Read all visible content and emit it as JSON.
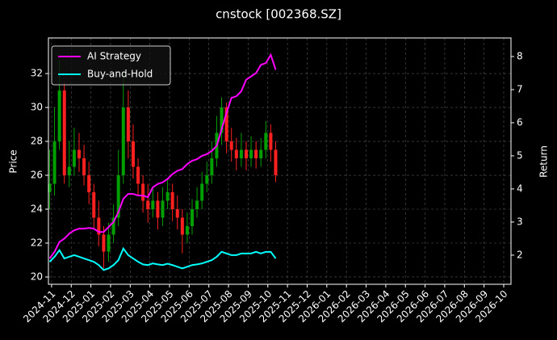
{
  "chart_data": {
    "type": "candlestick",
    "title": "cnstock [002368.SZ]",
    "ylabel": "Price",
    "y2label": "Return",
    "x": [
      -0.1,
      0.15,
      0.4,
      0.65,
      0.9,
      1.15,
      1.4,
      1.65,
      1.9,
      2.15,
      2.4,
      2.65,
      2.9,
      3.15,
      3.4,
      3.65,
      3.9,
      4.15,
      4.4,
      4.65,
      4.9,
      5.15,
      5.4,
      5.65,
      5.9,
      6.15,
      6.4,
      6.65,
      6.9,
      7.15,
      7.4,
      7.65,
      7.9,
      8.15,
      8.4,
      8.65,
      8.9,
      9.15,
      9.4,
      9.65,
      9.9,
      10.15,
      10.4,
      10.65,
      10.9,
      11.15,
      11.4
    ],
    "open": [
      25,
      25.5,
      28,
      31,
      26,
      26.5,
      27.5,
      27,
      26,
      25,
      23.5,
      22.5,
      21.5,
      22.5,
      23.5,
      26,
      30,
      28,
      26.5,
      25.5,
      24.5,
      24,
      24.5,
      23.5,
      24.5,
      25,
      24,
      23.5,
      22.5,
      23,
      24,
      24.5,
      25.5,
      26,
      27,
      28.5,
      30,
      28,
      27.5,
      27,
      27.5,
      27,
      27.5,
      27,
      27.5,
      28.5,
      27.5
    ],
    "high": [
      27.5,
      30,
      32.8,
      31.5,
      28,
      28.8,
      28.5,
      27.8,
      26.8,
      25.5,
      24.5,
      23,
      23.2,
      24.3,
      27.5,
      32,
      31,
      29,
      27,
      26,
      25.5,
      25.3,
      25,
      25.3,
      25.8,
      25.5,
      24.8,
      24,
      23.8,
      24.6,
      25.3,
      26.2,
      26.8,
      28,
      29.5,
      30.6,
      30.3,
      28.8,
      28.2,
      28.5,
      28,
      28.3,
      28,
      28.2,
      29.2,
      29,
      28
    ],
    "low": [
      24,
      24.8,
      27.5,
      25.5,
      25.3,
      26,
      26.2,
      25.4,
      24.3,
      22.8,
      21.8,
      20.5,
      20.9,
      22,
      23,
      25.5,
      27,
      25.8,
      24.8,
      23.8,
      23.2,
      23.5,
      22.8,
      23,
      24,
      23.3,
      22.8,
      21.4,
      22,
      22.5,
      23.5,
      24,
      25,
      25.5,
      26.5,
      27.8,
      27.3,
      26.8,
      26.3,
      26.5,
      26.3,
      26.5,
      26.4,
      26.5,
      27,
      26.8,
      25.6
    ],
    "close": [
      25.5,
      28,
      31,
      26,
      26.5,
      27.5,
      27,
      26,
      25,
      23.5,
      22.5,
      21.5,
      22.5,
      23.5,
      26,
      30,
      28,
      26.5,
      25.5,
      24.5,
      24,
      24.5,
      23.5,
      24.5,
      25,
      24,
      23.5,
      22.5,
      23,
      24,
      24.5,
      25.5,
      26,
      27,
      28.5,
      30,
      28,
      27.5,
      27,
      27.5,
      27,
      27.5,
      27,
      27.5,
      28.5,
      27.5,
      26
    ],
    "up_color": "#00a000",
    "down_color": "#ff2020",
    "series": [
      {
        "name": "AI Strategy",
        "color": "#ff00ff",
        "axis": "y2",
        "values": [
          1.9,
          2.1,
          2.4,
          2.5,
          2.65,
          2.75,
          2.8,
          2.8,
          2.82,
          2.8,
          2.7,
          2.7,
          2.85,
          3.0,
          3.3,
          3.7,
          3.85,
          3.85,
          3.8,
          3.8,
          3.75,
          4.05,
          4.15,
          4.2,
          4.3,
          4.45,
          4.55,
          4.6,
          4.75,
          4.85,
          4.9,
          5.0,
          5.05,
          5.15,
          5.3,
          5.8,
          6.3,
          6.75,
          6.8,
          6.95,
          7.3,
          7.4,
          7.5,
          7.75,
          7.8,
          8.05,
          7.6
        ]
      },
      {
        "name": "Buy-and-Hold",
        "color": "#00ffff",
        "axis": "y2",
        "values": [
          1.8,
          1.95,
          2.15,
          1.9,
          1.95,
          2.0,
          1.95,
          1.9,
          1.85,
          1.8,
          1.7,
          1.55,
          1.6,
          1.7,
          1.85,
          2.2,
          2.0,
          1.9,
          1.8,
          1.72,
          1.7,
          1.75,
          1.72,
          1.7,
          1.74,
          1.7,
          1.65,
          1.6,
          1.65,
          1.7,
          1.72,
          1.75,
          1.8,
          1.85,
          1.95,
          2.1,
          2.05,
          2.0,
          2.0,
          2.05,
          2.05,
          2.05,
          2.1,
          2.05,
          2.1,
          2.1,
          1.9
        ]
      }
    ],
    "xlim": [
      -0.16,
      23.37
    ],
    "ylim": [
      19.57,
      34.1
    ],
    "y2lim": [
      1.12,
      8.56
    ],
    "xticks": [
      {
        "value": 0,
        "label": "2024-11"
      },
      {
        "value": 1,
        "label": "2024-12"
      },
      {
        "value": 2,
        "label": "2025-01"
      },
      {
        "value": 3,
        "label": "2025-02"
      },
      {
        "value": 4,
        "label": "2025-03"
      },
      {
        "value": 5,
        "label": "2025-04"
      },
      {
        "value": 6,
        "label": "2025-05"
      },
      {
        "value": 7,
        "label": "2025-06"
      },
      {
        "value": 8,
        "label": "2025-07"
      },
      {
        "value": 9,
        "label": "2025-08"
      },
      {
        "value": 10,
        "label": "2025-09"
      },
      {
        "value": 11,
        "label": "2025-10"
      },
      {
        "value": 12,
        "label": "2025-11"
      },
      {
        "value": 13,
        "label": "2025-12"
      },
      {
        "value": 14,
        "label": "2026-01"
      },
      {
        "value": 15,
        "label": "2026-02"
      },
      {
        "value": 16,
        "label": "2026-03"
      },
      {
        "value": 17,
        "label": "2026-04"
      },
      {
        "value": 18,
        "label": "2026-05"
      },
      {
        "value": 19,
        "label": "2026-06"
      },
      {
        "value": 20,
        "label": "2026-07"
      },
      {
        "value": 21,
        "label": "2026-08"
      },
      {
        "value": 22,
        "label": "2026-09"
      },
      {
        "value": 23,
        "label": "2026-10"
      }
    ],
    "yticks": [
      20,
      22,
      24,
      26,
      28,
      30,
      32
    ],
    "y2ticks": [
      2,
      3,
      4,
      5,
      6,
      7,
      8
    ],
    "grid": true,
    "legend": "upper left"
  }
}
